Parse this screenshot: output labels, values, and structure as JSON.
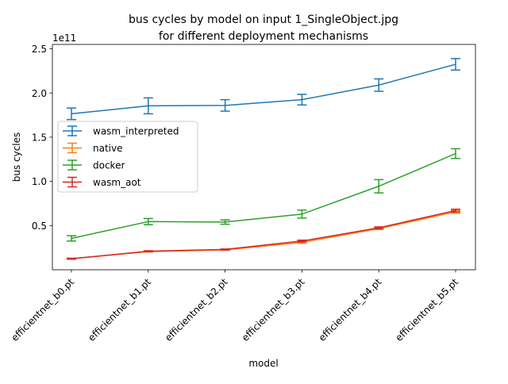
{
  "chart_data": {
    "type": "line",
    "title_line1": "bus cycles by model on input 1_SingleObject.jpg",
    "title_line2": "for different deployment mechanisms",
    "xlabel": "model",
    "ylabel": "bus cycles",
    "y_offset_label": "1e11",
    "y_scale": 100000000000.0,
    "ylim": [
      0.0,
      2.55
    ],
    "y_ticks": [
      0.5,
      1.0,
      1.5,
      2.0,
      2.5
    ],
    "y_tick_labels": [
      "0.5",
      "1.0",
      "1.5",
      "2.0",
      "2.5"
    ],
    "categories": [
      "efficientnet_b0.pt",
      "efficientnet_b1.pt",
      "efficientnet_b2.pt",
      "efficientnet_b3.pt",
      "efficientnet_b4.pt",
      "efficientnet_b5.pt"
    ],
    "series": [
      {
        "name": "wasm_interpreted",
        "color": "#1f77b4",
        "values": [
          1.765,
          1.855,
          1.86,
          1.925,
          2.09,
          2.325
        ],
        "errors": [
          0.065,
          0.09,
          0.065,
          0.06,
          0.07,
          0.065
        ]
      },
      {
        "name": "native",
        "color": "#ff7f0e",
        "values": [
          0.125,
          0.205,
          0.225,
          0.31,
          0.465,
          0.655
        ],
        "errors": [
          0.005,
          0.005,
          0.005,
          0.01,
          0.01,
          0.015
        ]
      },
      {
        "name": "docker",
        "color": "#2ca02c",
        "values": [
          0.355,
          0.545,
          0.54,
          0.63,
          0.945,
          1.315
        ],
        "errors": [
          0.03,
          0.035,
          0.025,
          0.045,
          0.075,
          0.055
        ]
      },
      {
        "name": "wasm_aot",
        "color": "#d62728",
        "values": [
          0.125,
          0.21,
          0.23,
          0.325,
          0.475,
          0.67
        ],
        "errors": [
          0.005,
          0.005,
          0.005,
          0.01,
          0.01,
          0.015
        ]
      }
    ],
    "legend_position": "center-left"
  }
}
